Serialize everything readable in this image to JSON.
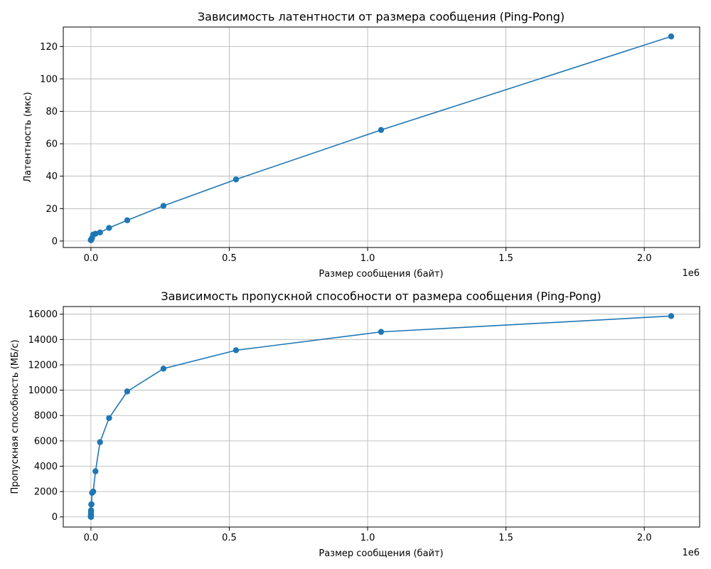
{
  "colors": {
    "series": "#1f77b4",
    "grid": "#b0b0b0",
    "axes": "#000000",
    "background": "#ffffff"
  },
  "chart_data": [
    {
      "type": "line",
      "markers": "circle",
      "grid": true,
      "title": "Зависимость латентности от размера сообщения (Ping-Pong)",
      "xlabel": "Размер сообщения (байт)",
      "ylabel": "Латентность (мкс)",
      "x_offset_text": "1e6",
      "xlim": [
        -100000,
        2200000
      ],
      "ylim": [
        -4,
        132
      ],
      "xticks": [
        0,
        500000,
        1000000,
        1500000,
        2000000
      ],
      "xtick_labels": [
        "0.0",
        "0.5",
        "1.0",
        "1.5",
        "2.0"
      ],
      "yticks": [
        0,
        20,
        40,
        60,
        80,
        100,
        120
      ],
      "ytick_labels": [
        "0",
        "20",
        "40",
        "60",
        "80",
        "100",
        "120"
      ],
      "series": [
        {
          "x": [
            1,
            2,
            4,
            8,
            16,
            32,
            64,
            128,
            256,
            512,
            1024,
            2048,
            4096,
            8192,
            16384,
            32768,
            65536,
            131072,
            262144,
            524288,
            1048576,
            2097152
          ],
          "y": [
            0.6,
            0.6,
            0.6,
            0.6,
            0.6,
            0.6,
            0.6,
            0.7,
            0.7,
            0.8,
            1.0,
            1.1,
            2.0,
            4.0,
            4.5,
            5.3,
            8.1,
            12.8,
            21.7,
            38.0,
            68.5,
            126.2
          ]
        }
      ]
    },
    {
      "type": "line",
      "markers": "circle",
      "grid": true,
      "title": "Зависимость пропускной способности от размера сообщения (Ping-Pong)",
      "xlabel": "Размер сообщения (байт)",
      "ylabel": "Пропускная способность (МБ/с)",
      "x_offset_text": "1e6",
      "xlim": [
        -100000,
        2200000
      ],
      "ylim": [
        -800,
        16600
      ],
      "xticks": [
        0,
        500000,
        1000000,
        1500000,
        2000000
      ],
      "xtick_labels": [
        "0.0",
        "0.5",
        "1.0",
        "1.5",
        "2.0"
      ],
      "yticks": [
        0,
        2000,
        4000,
        6000,
        8000,
        10000,
        12000,
        14000,
        16000
      ],
      "ytick_labels": [
        "0",
        "2000",
        "4000",
        "6000",
        "8000",
        "10000",
        "12000",
        "14000",
        "16000"
      ],
      "series": [
        {
          "x": [
            1,
            2,
            4,
            8,
            16,
            32,
            64,
            128,
            256,
            512,
            1024,
            2048,
            4096,
            8192,
            16384,
            32768,
            65536,
            131072,
            262144,
            524288,
            1048576,
            2097152
          ],
          "y": [
            2,
            3,
            7,
            13,
            27,
            53,
            107,
            190,
            380,
            520,
            980,
            1000,
            1900,
            2000,
            3600,
            5900,
            7800,
            9900,
            11700,
            13150,
            14600,
            15850
          ]
        }
      ]
    }
  ]
}
